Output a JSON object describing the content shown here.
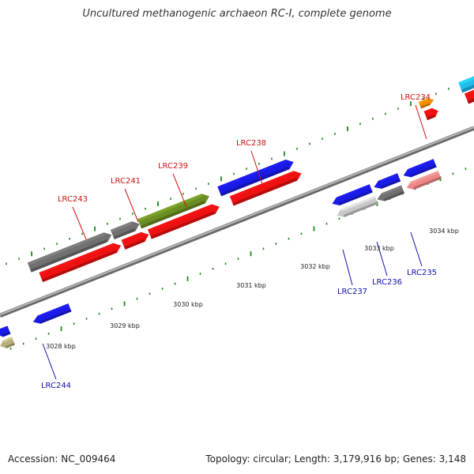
{
  "title": "Uncultured methanogenic archaeon RC-I, complete genome",
  "footer": {
    "accession": "Accession: NC_009464",
    "topology": "Topology: circular; Length: 3,179,916 bp; Genes: 3,148"
  },
  "colors": {
    "backbone": "#8c8c8c",
    "tick": "#1a8a1a",
    "label_forward": "#cc1111",
    "label_reverse": "#1111aa",
    "red": "#ee1111",
    "dark_gray": "#707070",
    "olive": "#6b8e23",
    "blue": "#1a1ae6",
    "orange": "#f28c00",
    "cyan": "#22bbee",
    "light_gray": "#c8c8c8",
    "pink": "#ee8888",
    "khaki": "#b5b07a"
  },
  "scale_labels": [
    "3028 kbp",
    "3029 kbp",
    "3030 kbp",
    "3031 kbp",
    "3032 kbp",
    "3033 kbp",
    "3034 kbp"
  ],
  "gene_labels": [
    {
      "id": "LRC243",
      "strand": "forward"
    },
    {
      "id": "LRC241",
      "strand": "forward"
    },
    {
      "id": "LRC239",
      "strand": "forward"
    },
    {
      "id": "LRC238",
      "strand": "forward"
    },
    {
      "id": "LRC234",
      "strand": "forward"
    },
    {
      "id": "LRC237",
      "strand": "reverse"
    },
    {
      "id": "LRC236",
      "strand": "reverse"
    },
    {
      "id": "LRC235",
      "strand": "reverse"
    },
    {
      "id": "LRC244",
      "strand": "reverse"
    }
  ]
}
